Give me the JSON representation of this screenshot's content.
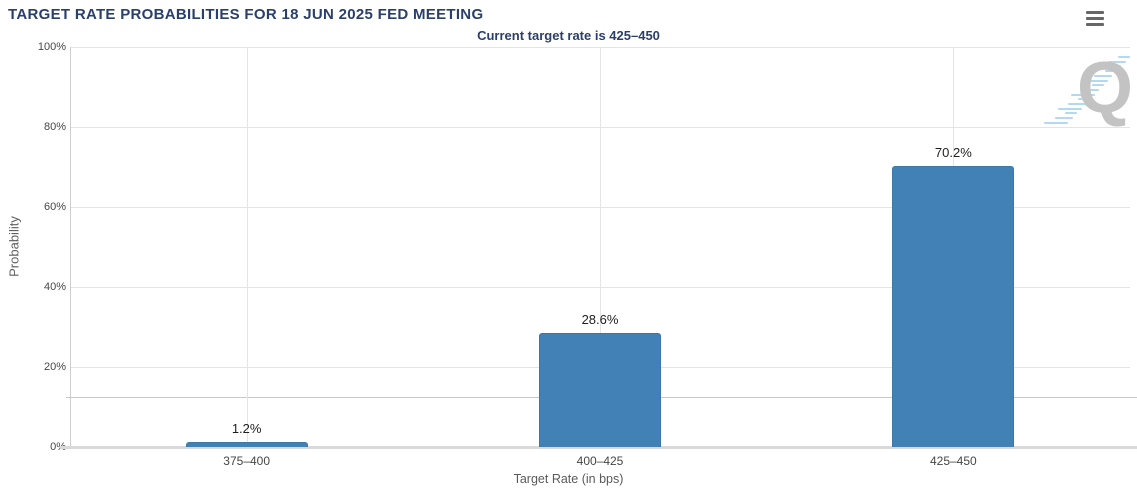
{
  "header": {
    "title": "TARGET RATE PROBABILITIES FOR 18 JUN 2025 FED MEETING",
    "menu_icon": "hamburger-menu-icon"
  },
  "chart_data": {
    "type": "bar",
    "title": "Current target rate is 425–450",
    "categories": [
      "375–400",
      "400–425",
      "425–450"
    ],
    "values": [
      1.2,
      28.6,
      70.2
    ],
    "value_labels": [
      "1.2%",
      "28.6%",
      "70.2%"
    ],
    "xlabel": "Target Rate (in bps)",
    "ylabel": "Probability",
    "ylim": [
      0,
      100
    ],
    "ytick_step": 20,
    "ytick_suffix": "%",
    "grid": true,
    "legend": "none",
    "reference_line_value": 12.5,
    "bar_color": "#4181b5"
  },
  "watermark": {
    "letter": "Q"
  },
  "colors": {
    "title_text": "#2a3f6d",
    "bar": "#4181b5",
    "gridline": "#e4e4e4",
    "axis_text": "#464646",
    "watermark_q": "#c3c3c3",
    "watermark_hatch": "#b2d9f0"
  }
}
